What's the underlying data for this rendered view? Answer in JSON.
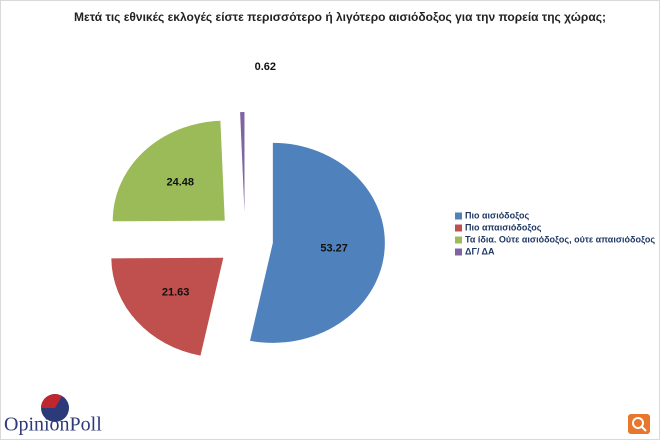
{
  "chart_data": {
    "type": "pie",
    "title": "Μετά τις εθνικές εκλογές είστε περισσότερο ή λιγότερο αισιόδοξος για την πορεία της χώρας;",
    "categories": [
      "Πιο αισιόδοξος",
      "Πιο απαισιόδοξος",
      "Τα ίδια. Ούτε αισιόδοξος, ούτε απαισιόδοξος",
      "ΔΓ/ ΔΑ"
    ],
    "values": [
      53.27,
      21.63,
      24.48,
      0.62
    ],
    "colors": [
      "#4f81bd",
      "#c0504d",
      "#9bbb59",
      "#8064a2"
    ],
    "legend": "right"
  },
  "logo": "OpinionPoll"
}
